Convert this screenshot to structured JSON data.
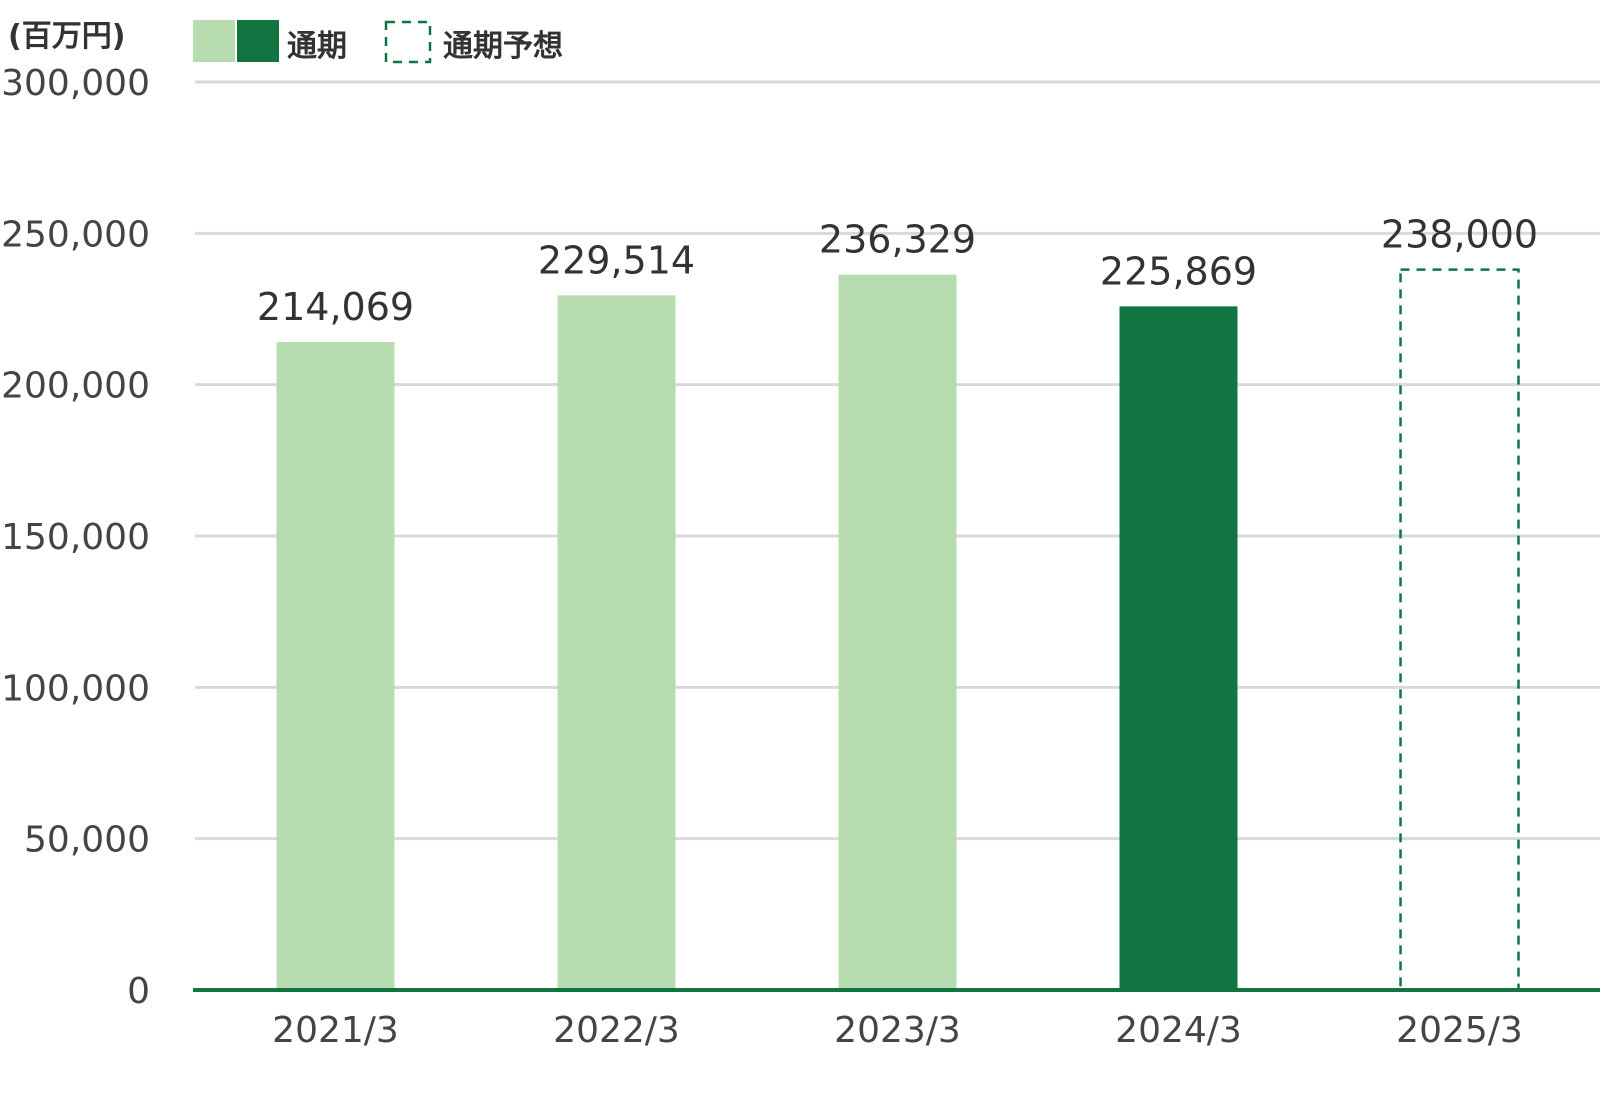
{
  "colors": {
    "actual_light": "#b7dcb0",
    "actual_dark": "#127541",
    "forecast_outline": "#127541",
    "grid": "#d9d9d9",
    "baseline": "#127541"
  },
  "legend": {
    "actual_label": "通期",
    "forecast_label": "通期予想"
  },
  "chart_data": {
    "type": "bar",
    "unit_label": "(百万円)",
    "categories": [
      "2021/3",
      "2022/3",
      "2023/3",
      "2024/3",
      "2025/3"
    ],
    "values": [
      214069,
      229514,
      236329,
      225869,
      238000
    ],
    "value_labels": [
      "214,069",
      "229,514",
      "236,329",
      "225,869",
      "238,000"
    ],
    "bar_styles": [
      "actual_light",
      "actual_light",
      "actual_light",
      "actual_dark",
      "forecast"
    ],
    "ylim": [
      0,
      300000
    ],
    "yticks": [
      0,
      50000,
      100000,
      150000,
      200000,
      250000,
      300000
    ],
    "ytick_labels": [
      "0",
      "50,000",
      "100,000",
      "150,000",
      "200,000",
      "250,000",
      "300,000"
    ],
    "grid": true,
    "legend_position": "top-left"
  }
}
